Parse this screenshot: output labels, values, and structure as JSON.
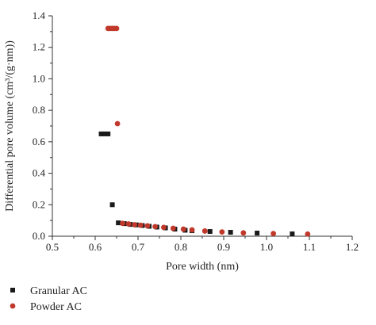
{
  "chart_data": {
    "type": "scatter",
    "title": "",
    "xlabel": "Pore width (nm)",
    "ylabel": "Differential pore volume (cm³/(g·nm))",
    "xlim": [
      0.5,
      1.2
    ],
    "ylim": [
      0,
      1.4
    ],
    "x_ticks": [
      "0.5",
      "0.6",
      "0.7",
      "0.8",
      "0.9",
      "1.0",
      "1.1",
      "1.2"
    ],
    "y_ticks": [
      "0.0",
      "0.2",
      "0.4",
      "0.6",
      "0.8",
      "1.0",
      "1.2",
      "1.4"
    ],
    "x_tick_values": [
      0.5,
      0.6,
      0.7,
      0.8,
      0.9,
      1.0,
      1.1,
      1.2
    ],
    "y_tick_values": [
      0.0,
      0.2,
      0.4,
      0.6,
      0.8,
      1.0,
      1.2,
      1.4
    ],
    "grid": false,
    "legend_position": "bottom-left",
    "series": [
      {
        "name": "Granular AC",
        "marker": "square",
        "color": "#1a1a1a",
        "x": [
          0.614,
          0.622,
          0.63,
          0.64,
          0.654,
          0.668,
          0.682,
          0.696,
          0.71,
          0.726,
          0.744,
          0.764,
          0.786,
          0.81,
          0.826,
          0.868,
          0.916,
          0.978,
          1.06
        ],
        "y": [
          0.65,
          0.65,
          0.65,
          0.2,
          0.085,
          0.08,
          0.075,
          0.072,
          0.068,
          0.063,
          0.058,
          0.053,
          0.045,
          0.038,
          0.035,
          0.03,
          0.025,
          0.02,
          0.015
        ]
      },
      {
        "name": "Powder AC",
        "marker": "circle",
        "color": "#c0392b",
        "x": [
          0.63,
          0.635,
          0.64,
          0.645,
          0.65,
          0.652,
          0.664,
          0.678,
          0.692,
          0.706,
          0.722,
          0.74,
          0.76,
          0.782,
          0.806,
          0.826,
          0.856,
          0.896,
          0.946,
          1.016,
          1.096
        ],
        "y": [
          1.32,
          1.32,
          1.32,
          1.32,
          1.32,
          0.715,
          0.082,
          0.078,
          0.073,
          0.07,
          0.066,
          0.061,
          0.056,
          0.05,
          0.045,
          0.04,
          0.033,
          0.027,
          0.021,
          0.017,
          0.014
        ]
      }
    ]
  }
}
